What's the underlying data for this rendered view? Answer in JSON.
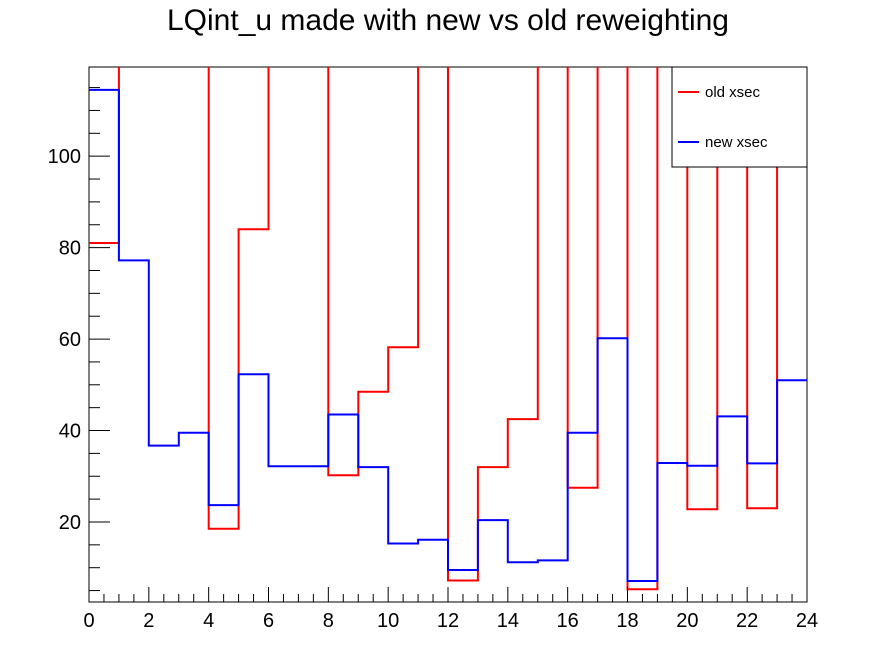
{
  "chart_data": {
    "type": "line",
    "title": "LQint_u made with new vs old reweighting",
    "xlabel": "",
    "ylabel": "",
    "xlim": [
      0,
      24
    ],
    "ylim": [
      2.5,
      119.5
    ],
    "x_ticks": [
      0,
      2,
      4,
      6,
      8,
      10,
      12,
      14,
      16,
      18,
      20,
      22,
      24
    ],
    "y_ticks": [
      20,
      40,
      60,
      80,
      100
    ],
    "grid": false,
    "legend_position": "top-right",
    "bin_edges": [
      0,
      1,
      2,
      3,
      4,
      5,
      6,
      7,
      8,
      9,
      10,
      11,
      12,
      13,
      14,
      15,
      16,
      17,
      18,
      19,
      20,
      21,
      22,
      23,
      24
    ],
    "series": [
      {
        "name": "old xsec",
        "color": "#ff0000",
        "values": [
          81,
          120,
          140,
          140,
          18.5,
          84,
          140,
          140,
          30.2,
          48.5,
          58.2,
          140,
          7.2,
          32,
          42.5,
          140,
          27.5,
          140,
          5.3,
          140,
          22.8,
          140,
          23,
          140
        ]
      },
      {
        "name": "new xsec",
        "color": "#0000ff",
        "values": [
          114.5,
          77.2,
          36.7,
          39.5,
          23.7,
          52.3,
          32.2,
          32.2,
          43.5,
          32,
          15.3,
          16.1,
          9.5,
          20.4,
          11.2,
          11.6,
          39.5,
          60.2,
          7.1,
          32.9,
          32.3,
          43.1,
          32.8,
          51
        ]
      }
    ]
  }
}
